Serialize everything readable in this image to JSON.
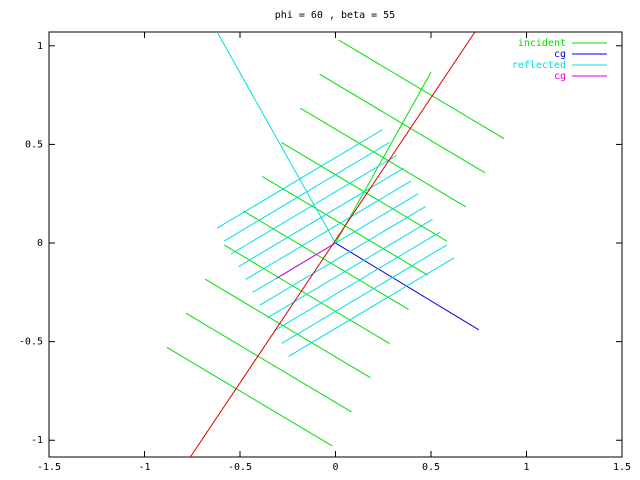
{
  "chart_data": {
    "type": "line",
    "title": "phi = 60 , beta = 55",
    "xlim": [
      -1.5,
      1.5
    ],
    "ylim": [
      -1.085,
      1.07
    ],
    "xticks": [
      -1.5,
      -1,
      -0.5,
      0,
      0.5,
      1,
      1.5
    ],
    "yticks": [
      -1,
      -0.5,
      0,
      0.5,
      1
    ],
    "legend": "top right",
    "grid": false,
    "series": [
      {
        "name": "incident",
        "color": "#00e000",
        "x": [
          0.017,
          0.883,
          null,
          -0.083,
          0.783,
          null,
          -0.183,
          0.683,
          null,
          -0.283,
          0.583,
          null,
          -0.383,
          0.483,
          null,
          -0.483,
          0.383,
          null,
          -0.583,
          0.283,
          null,
          -0.683,
          0.183,
          null,
          -0.783,
          0.083,
          null,
          -0.883,
          -0.017,
          null,
          0,
          0.5
        ],
        "y": [
          1.029,
          0.529,
          null,
          0.856,
          0.356,
          null,
          0.683,
          0.183,
          null,
          0.51,
          0.01,
          null,
          0.337,
          -0.163,
          null,
          0.163,
          -0.337,
          null,
          -0.01,
          -0.51,
          null,
          -0.183,
          -0.683,
          null,
          -0.356,
          -0.856,
          null,
          -0.529,
          -1.029,
          null,
          0,
          0.866
        ]
      },
      {
        "name": "cg",
        "color": "#0000e0",
        "x": [
          0,
          0.75
        ],
        "y": [
          0,
          -0.44
        ]
      },
      {
        "name": "reflected",
        "color": "#00e0e0",
        "x": [
          -0.621,
          0.246,
          null,
          -0.583,
          0.283,
          null,
          -0.546,
          0.321,
          null,
          -0.508,
          0.358,
          null,
          -0.471,
          0.396,
          null,
          -0.433,
          0.433,
          null,
          -0.396,
          0.471,
          null,
          -0.358,
          0.508,
          null,
          -0.321,
          0.546,
          null,
          -0.283,
          0.583,
          null,
          -0.246,
          0.621,
          null,
          0,
          -0.62
        ],
        "y": [
          0.075,
          0.575,
          null,
          0.01,
          0.51,
          null,
          -0.055,
          0.445,
          null,
          -0.12,
          0.38,
          null,
          -0.185,
          0.315,
          null,
          -0.25,
          0.25,
          null,
          -0.315,
          0.185,
          null,
          -0.38,
          0.12,
          null,
          -0.445,
          0.055,
          null,
          -0.51,
          -0.01,
          null,
          -0.575,
          -0.075,
          null,
          0,
          1.07
        ]
      },
      {
        "name": "cg",
        "color": "#e000e0",
        "x": [
          0,
          -0.31
        ],
        "y": [
          0,
          -0.18
        ]
      },
      {
        "color": "#e00000",
        "x": [
          -0.76,
          0.73
        ],
        "y": [
          -1.085,
          1.07
        ]
      }
    ]
  }
}
